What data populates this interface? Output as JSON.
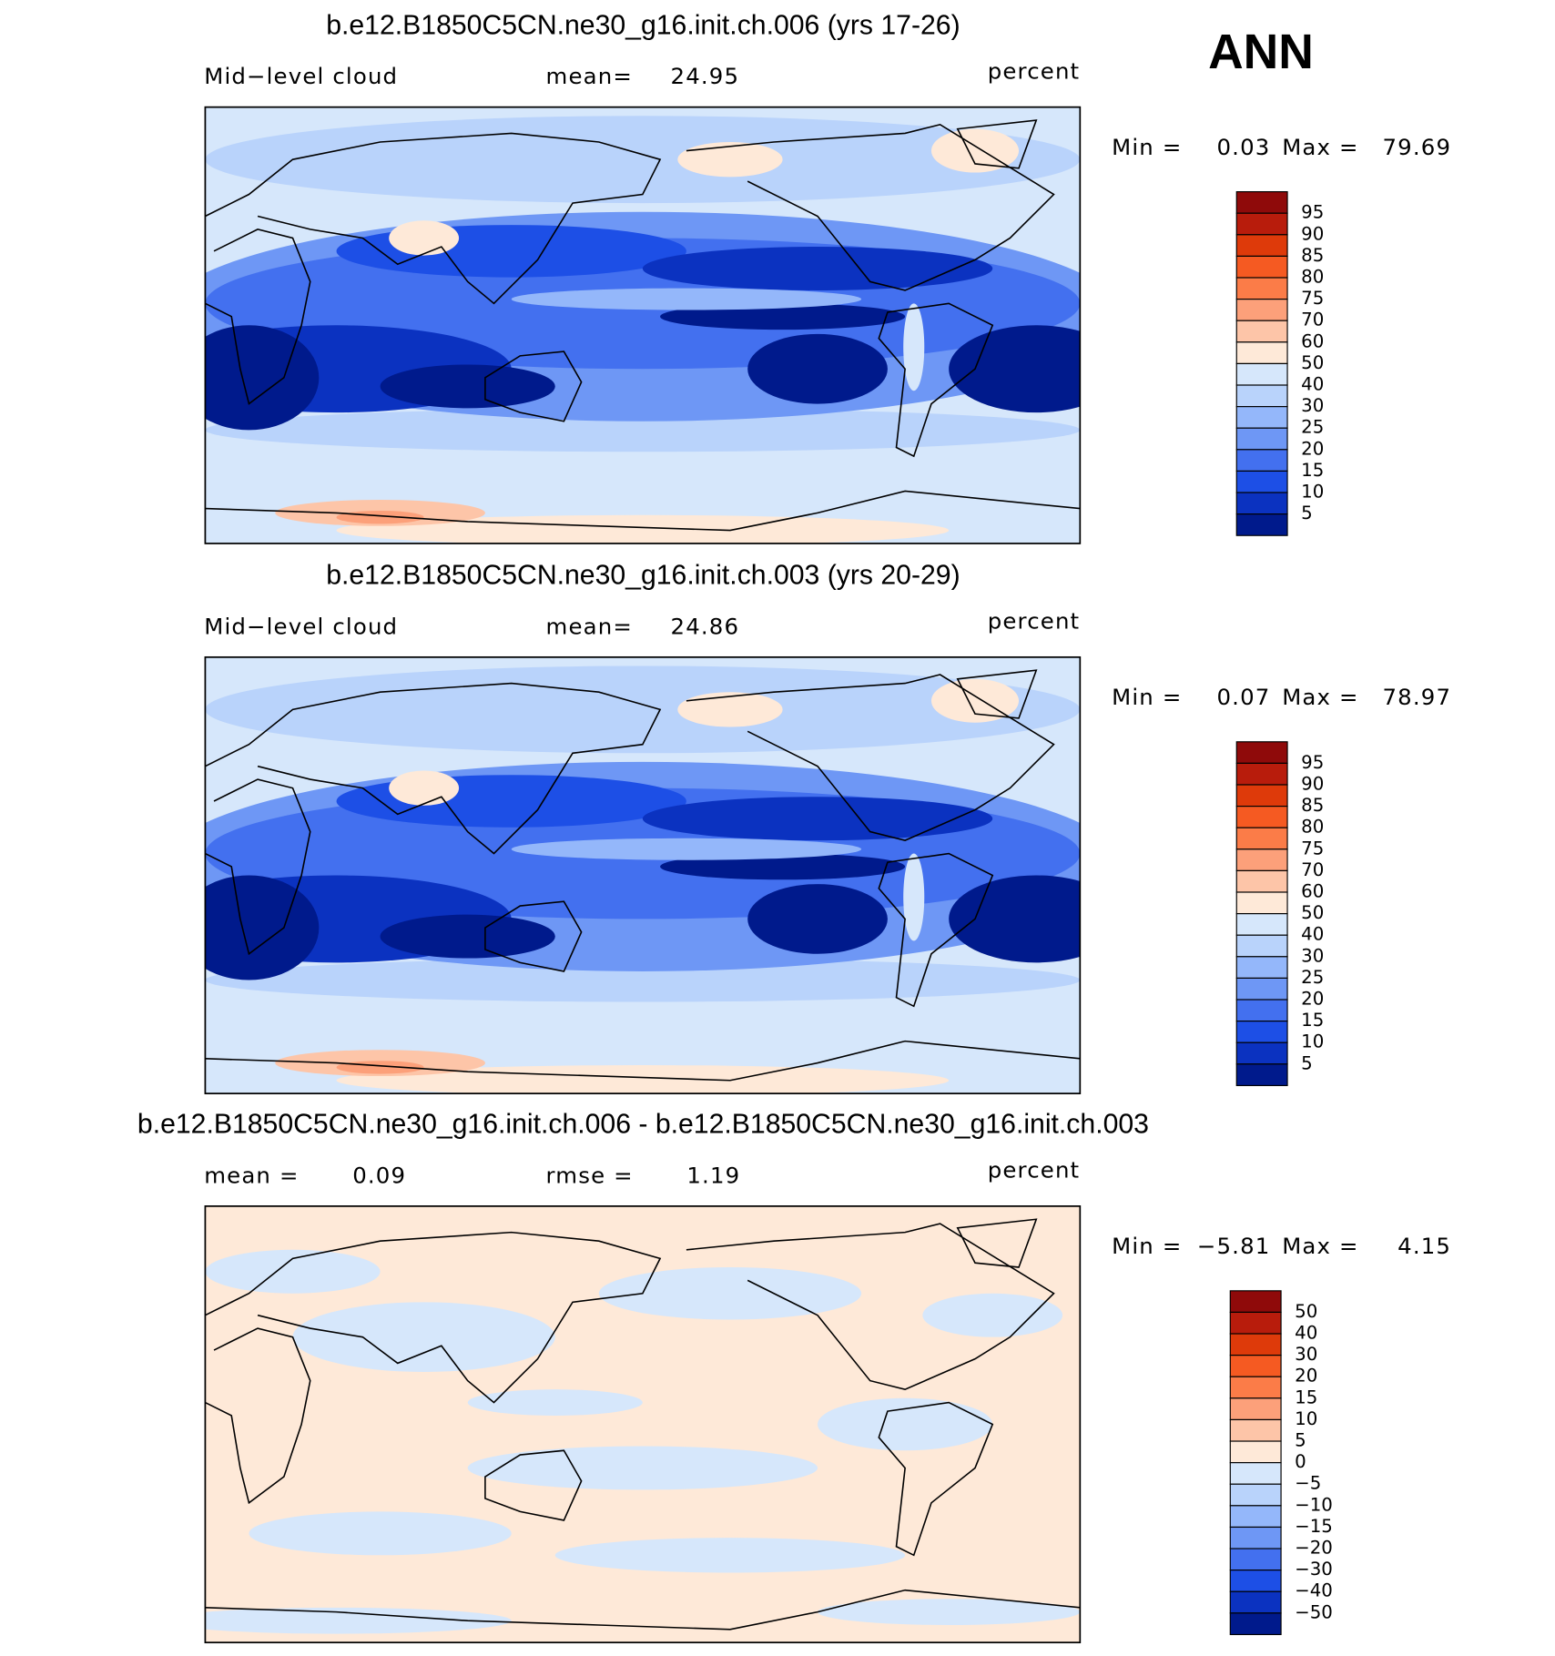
{
  "header": {
    "title": "ANN"
  },
  "panels": [
    {
      "title": "b.e12.B1850C5CN.ne30_g16.init.ch.006 (yrs 17-26)",
      "variable": "Mid−level cloud",
      "mean_label": "mean=",
      "mean": 24.95,
      "units": "percent",
      "min_label": "Min =",
      "min": 0.03,
      "max_label": "Max =",
      "max": 79.69,
      "colorbar": {
        "levels": [
          95,
          90,
          85,
          80,
          75,
          70,
          60,
          50,
          40,
          30,
          25,
          20,
          15,
          10,
          5
        ],
        "colors": [
          "#8f0a0a",
          "#b81c0c",
          "#de3a0a",
          "#f55a22",
          "#fb7c48",
          "#fca07a",
          "#fdc5a8",
          "#fee9d8",
          "#d6e7fb",
          "#b9d3fb",
          "#94b7fa",
          "#6e97f5",
          "#4370ef",
          "#1d4fe6",
          "#0b32c0",
          "#001a8c"
        ]
      }
    },
    {
      "title": "b.e12.B1850C5CN.ne30_g16.init.ch.003 (yrs 20-29)",
      "variable": "Mid−level cloud",
      "mean_label": "mean=",
      "mean": 24.86,
      "units": "percent",
      "min_label": "Min =",
      "min": 0.07,
      "max_label": "Max =",
      "max": 78.97,
      "colorbar": {
        "levels": [
          95,
          90,
          85,
          80,
          75,
          70,
          60,
          50,
          40,
          30,
          25,
          20,
          15,
          10,
          5
        ],
        "colors": [
          "#8f0a0a",
          "#b81c0c",
          "#de3a0a",
          "#f55a22",
          "#fb7c48",
          "#fca07a",
          "#fdc5a8",
          "#fee9d8",
          "#d6e7fb",
          "#b9d3fb",
          "#94b7fa",
          "#6e97f5",
          "#4370ef",
          "#1d4fe6",
          "#0b32c0",
          "#001a8c"
        ]
      }
    },
    {
      "title": "b.e12.B1850C5CN.ne30_g16.init.ch.006 - b.e12.B1850C5CN.ne30_g16.init.ch.003",
      "mean_label": "mean =",
      "mean": 0.09,
      "rmse_label": "rmse =",
      "rmse": 1.19,
      "units": "percent",
      "min_label": "Min =",
      "min": {
        "value": -5.81,
        "label": "−5.81"
      },
      "max_label": "Max =",
      "max": 4.15,
      "colorbar": {
        "levels": [
          50,
          40,
          30,
          20,
          15,
          10,
          5,
          0,
          {
            "value": -5,
            "label": "−5"
          },
          {
            "value": -10,
            "label": "−10"
          },
          {
            "value": -15,
            "label": "−15"
          },
          {
            "value": -20,
            "label": "−20"
          },
          {
            "value": -30,
            "label": "−30"
          },
          {
            "value": -40,
            "label": "−40"
          },
          {
            "value": -50,
            "label": "−50"
          }
        ],
        "colors": [
          "#8f0a0a",
          "#b81c0c",
          "#de3a0a",
          "#f55a22",
          "#fb7c48",
          "#fca07a",
          "#fdc5a8",
          "#fee9d8",
          "#d6e7fb",
          "#b9d3fb",
          "#94b7fa",
          "#6e97f5",
          "#4370ef",
          "#1d4fe6",
          "#0b32c0",
          "#001a8c"
        ]
      }
    }
  ]
}
